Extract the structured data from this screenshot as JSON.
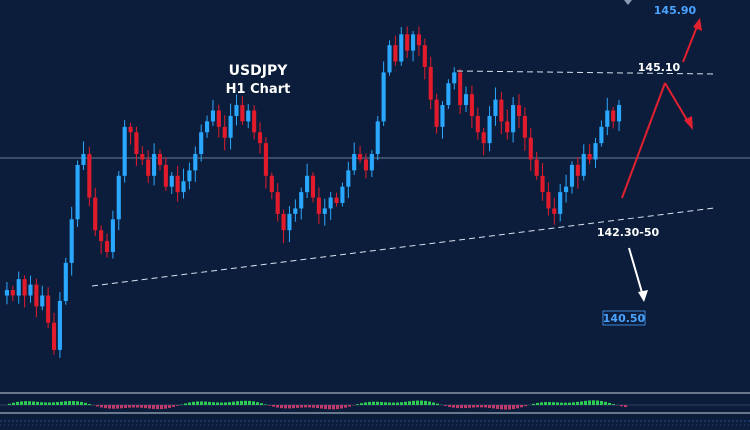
{
  "chart_data": {
    "type": "candlestick",
    "title": "USDJPY",
    "subtitle": "H1 Chart",
    "colors": {
      "background": "#0b1d3a",
      "bull": "#2aa8ff",
      "bear": "#e21b2c",
      "wick": "#9fb6d8",
      "guide": "#d9e2ef",
      "target_red": "#e2202f",
      "target_white": "#ffffff",
      "tag_text": "#4aa3ff",
      "oscillator_up": "#2ecc55",
      "oscillator_down": "#c03a6a"
    },
    "price_axis": {
      "visible": false,
      "range": [
        139.3,
        146.1
      ]
    },
    "levels": {
      "upper_target": "145.90",
      "resistance": "145.10",
      "support": "142.30-50",
      "lower_target": "140.50"
    },
    "closes": [
      141.1,
      141.0,
      141.3,
      141.0,
      141.2,
      140.8,
      141.0,
      140.5,
      140.0,
      140.9,
      141.6,
      142.4,
      143.4,
      143.6,
      142.8,
      142.2,
      142.0,
      141.8,
      142.4,
      143.2,
      144.1,
      144.0,
      143.6,
      143.5,
      143.2,
      143.6,
      143.4,
      143.0,
      143.2,
      142.9,
      143.1,
      143.3,
      143.6,
      144.0,
      144.2,
      144.4,
      144.1,
      143.9,
      144.3,
      144.5,
      144.2,
      144.4,
      144.0,
      143.8,
      143.2,
      142.9,
      142.5,
      142.2,
      142.5,
      142.6,
      142.9,
      143.2,
      142.8,
      142.5,
      142.6,
      142.8,
      142.7,
      143.0,
      143.3,
      143.6,
      143.5,
      143.3,
      143.6,
      144.2,
      145.1,
      145.6,
      145.3,
      145.8,
      145.5,
      145.8,
      145.6,
      145.2,
      144.6,
      144.1,
      144.5,
      144.9,
      145.1,
      144.5,
      144.7,
      144.3,
      144.0,
      143.8,
      144.3,
      144.6,
      144.2,
      144.0,
      144.5,
      144.3,
      143.9,
      143.5,
      143.2,
      142.9,
      142.6,
      142.5,
      142.9,
      143.0,
      143.4,
      143.2,
      143.6,
      143.5,
      143.8,
      144.1,
      144.4,
      144.2,
      144.5
    ]
  }
}
